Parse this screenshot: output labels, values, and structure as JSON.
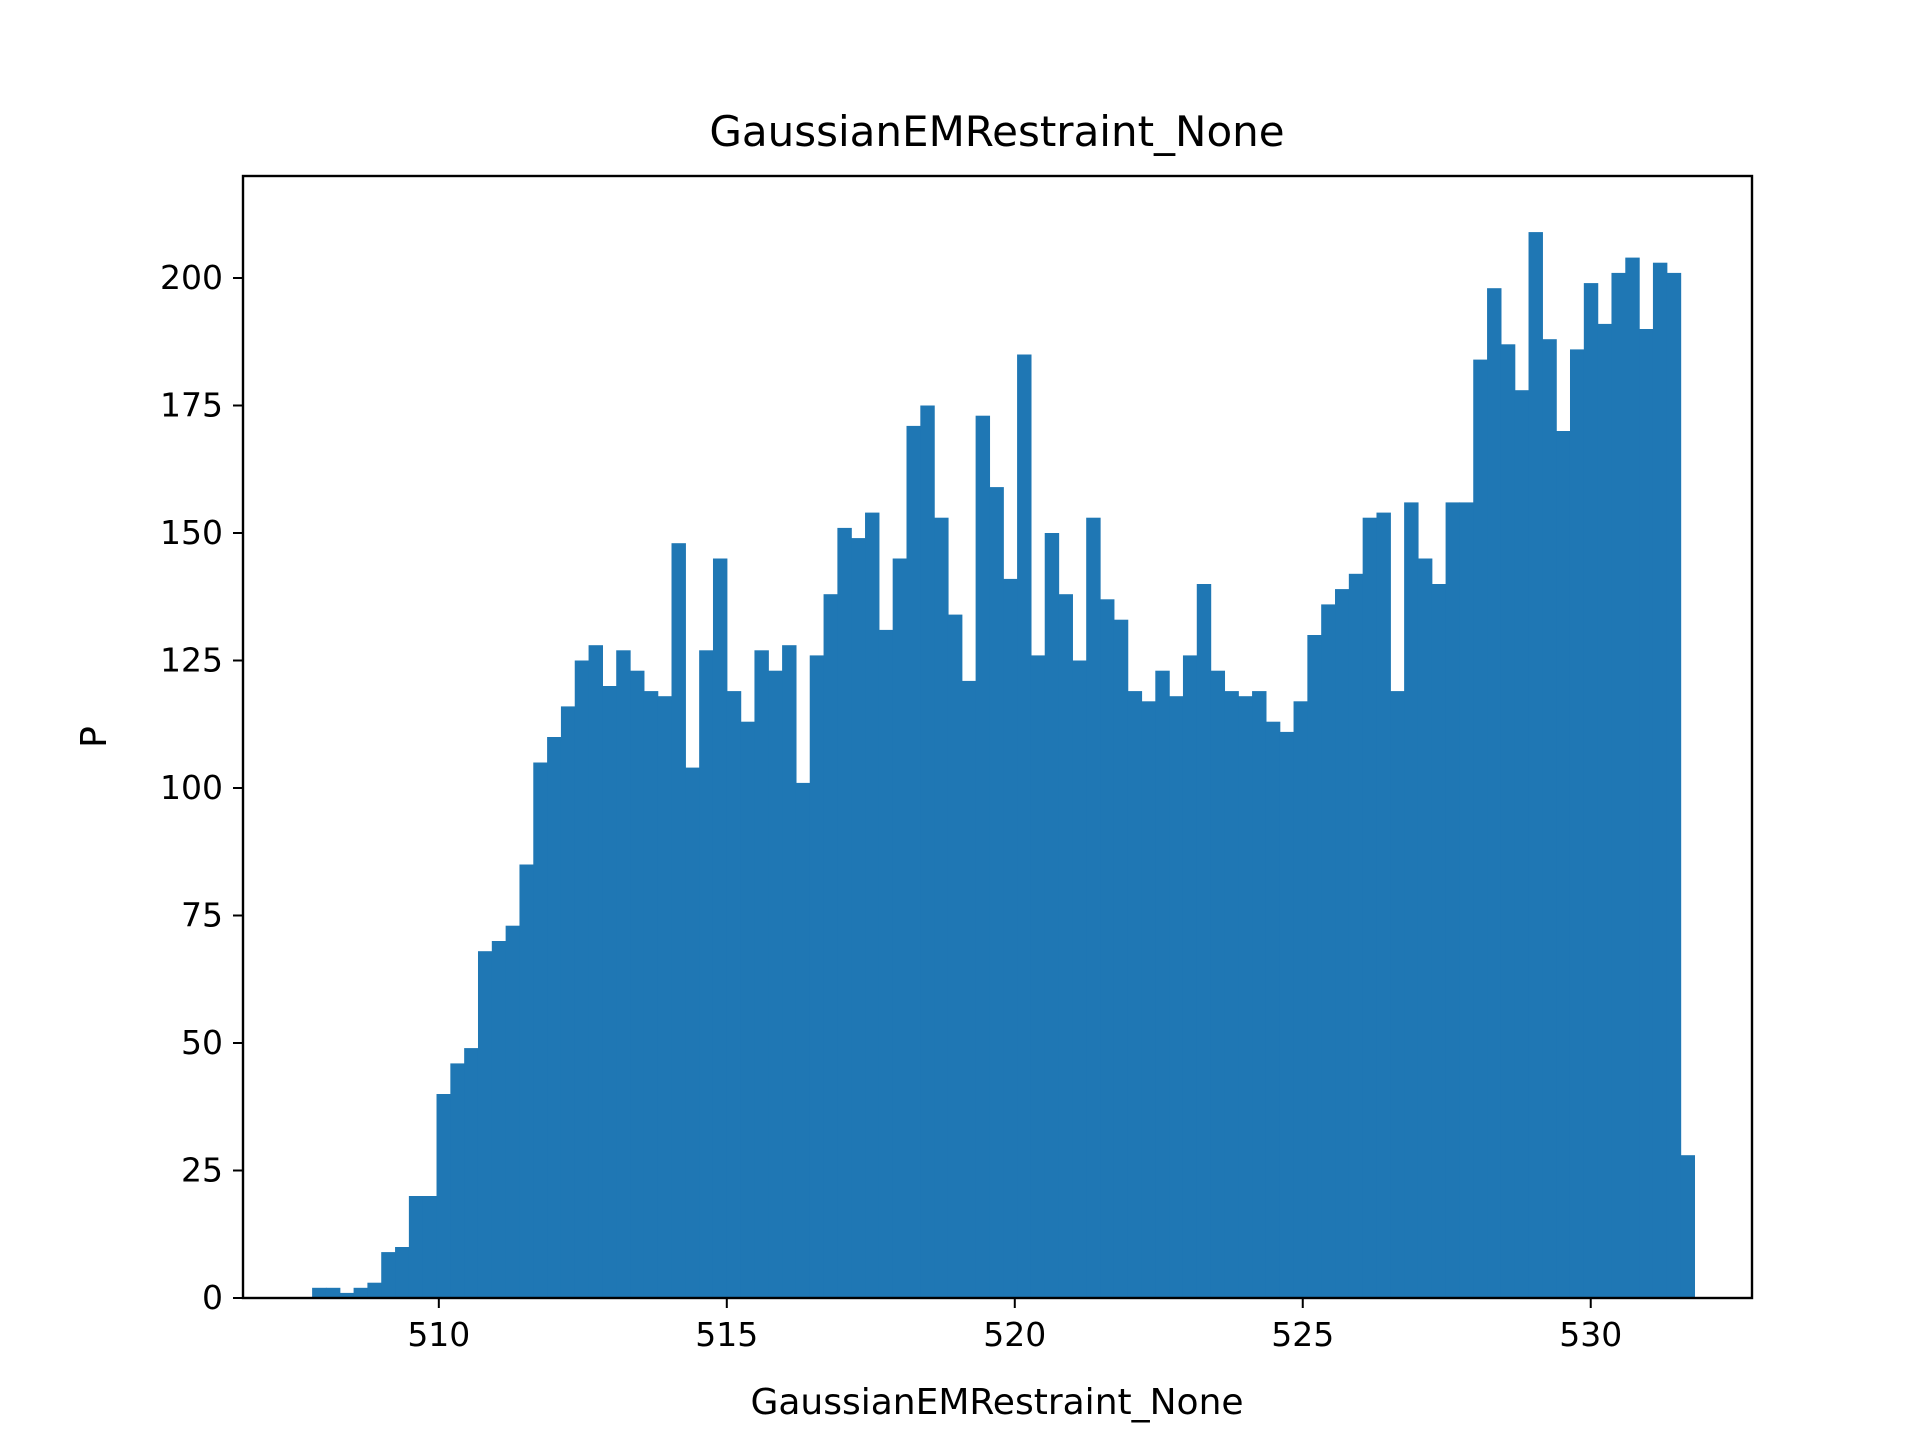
{
  "chart_data": {
    "type": "bar",
    "title": "GaussianEMRestraint_None",
    "xlabel": "GaussianEMRestraint_None",
    "ylabel": "P",
    "xlim": [
      506.6,
      532.8
    ],
    "ylim": [
      0,
      220
    ],
    "xticks": [
      510,
      515,
      520,
      525,
      530
    ],
    "yticks": [
      0,
      25,
      50,
      75,
      100,
      125,
      150,
      175,
      200
    ],
    "bin_start": 507.8,
    "bin_width": 0.24,
    "bar_color": "#1f77b4",
    "grid": false,
    "legend": "none",
    "values": [
      2,
      2,
      1,
      2,
      3,
      9,
      10,
      20,
      20,
      40,
      46,
      49,
      68,
      70,
      73,
      85,
      105,
      110,
      116,
      125,
      128,
      120,
      127,
      123,
      119,
      118,
      148,
      104,
      127,
      145,
      119,
      113,
      127,
      123,
      128,
      101,
      126,
      138,
      151,
      149,
      154,
      131,
      145,
      171,
      175,
      153,
      134,
      121,
      173,
      159,
      141,
      185,
      126,
      150,
      138,
      125,
      153,
      137,
      133,
      119,
      117,
      123,
      118,
      126,
      140,
      123,
      119,
      118,
      119,
      113,
      111,
      117,
      130,
      136,
      139,
      142,
      153,
      154,
      119,
      156,
      145,
      140,
      156,
      156,
      184,
      198,
      187,
      178,
      209,
      188,
      170,
      186,
      199,
      191,
      201,
      204,
      190,
      203,
      201,
      28
    ]
  }
}
